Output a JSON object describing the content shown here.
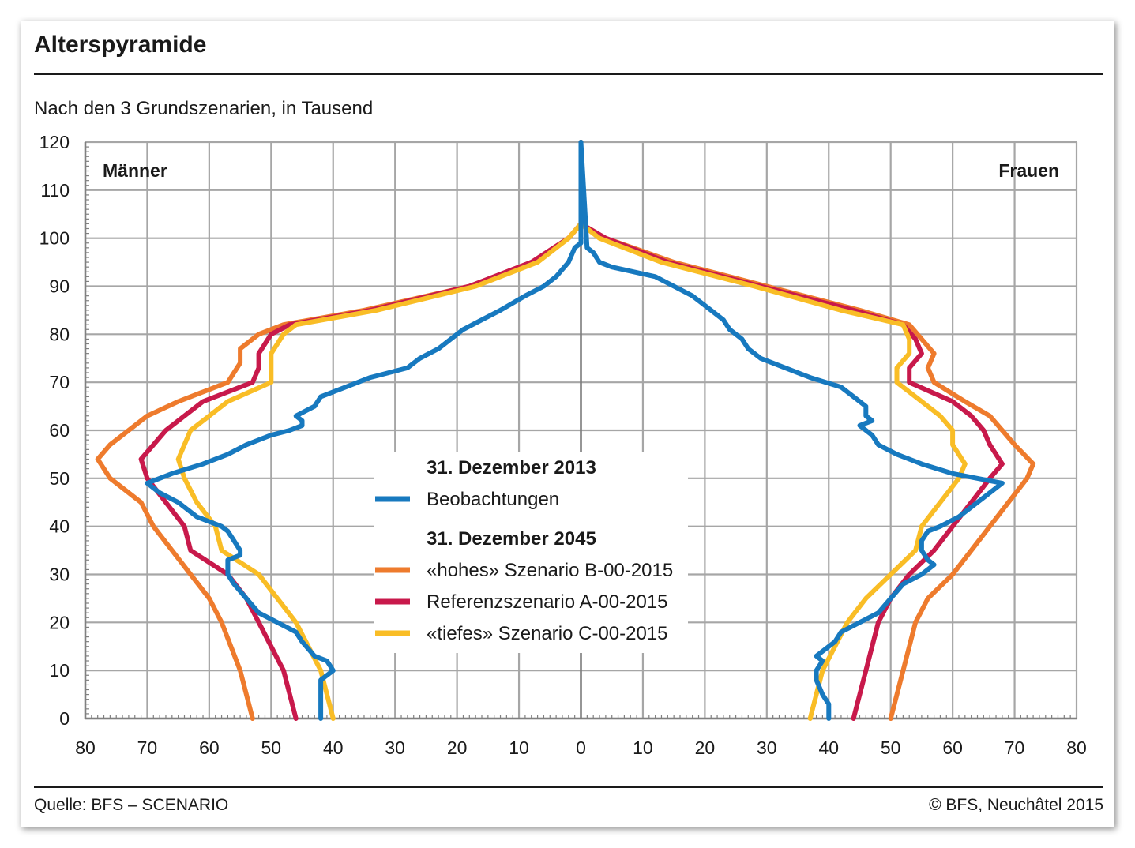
{
  "header": {
    "title": "Alterspyramide",
    "subtitle": "Nach den 3 Grundszenarien, in Tausend"
  },
  "footer": {
    "source": "Quelle: BFS – SCENARIO",
    "copyright": "© BFS, Neuchâtel 2015"
  },
  "chart_data": {
    "type": "line",
    "orientation": "population-pyramid",
    "side_labels": {
      "left": "Männer",
      "right": "Frauen"
    },
    "x_ticks": [
      "80",
      "70",
      "60",
      "50",
      "40",
      "30",
      "20",
      "10",
      "0",
      "10",
      "20",
      "30",
      "40",
      "50",
      "60",
      "70",
      "80"
    ],
    "xlim": [
      -80,
      80
    ],
    "ylim": [
      0,
      120
    ],
    "y_ticks": [
      0,
      10,
      20,
      30,
      40,
      50,
      60,
      70,
      80,
      90,
      100,
      110,
      120
    ],
    "grid": true,
    "legend": {
      "placement": "center",
      "groups": [
        {
          "heading": "31. Dezember 2013",
          "items": [
            {
              "label": "Beobachtungen",
              "series": "obs"
            }
          ]
        },
        {
          "heading": "31. Dezember 2045",
          "items": [
            {
              "label": "«hohes» Szenario B-00-2015",
              "series": "high"
            },
            {
              "label": "Referenzszenario A-00-2015",
              "series": "ref"
            },
            {
              "label": "«tiefes» Szenario C-00-2015",
              "series": "low"
            }
          ]
        }
      ]
    },
    "series": [
      {
        "key": "high",
        "color": "#ee7b2d",
        "men": [
          [
            0,
            53
          ],
          [
            10,
            55
          ],
          [
            20,
            58
          ],
          [
            25,
            60
          ],
          [
            30,
            63
          ],
          [
            35,
            66
          ],
          [
            40,
            69
          ],
          [
            45,
            71
          ],
          [
            50,
            76
          ],
          [
            54,
            78
          ],
          [
            57,
            76
          ],
          [
            60,
            73
          ],
          [
            63,
            70
          ],
          [
            66,
            65
          ],
          [
            70,
            57
          ],
          [
            74,
            55
          ],
          [
            77,
            55
          ],
          [
            80,
            52
          ],
          [
            82,
            48
          ],
          [
            85,
            35
          ],
          [
            90,
            18
          ],
          [
            95,
            8
          ],
          [
            100,
            2
          ],
          [
            103,
            0
          ],
          [
            120,
            0
          ]
        ],
        "women": [
          [
            0,
            50
          ],
          [
            10,
            52
          ],
          [
            20,
            54
          ],
          [
            25,
            56
          ],
          [
            30,
            60
          ],
          [
            35,
            63
          ],
          [
            40,
            66
          ],
          [
            45,
            69
          ],
          [
            50,
            72
          ],
          [
            53,
            73
          ],
          [
            57,
            70
          ],
          [
            60,
            68
          ],
          [
            63,
            66
          ],
          [
            66,
            62
          ],
          [
            70,
            57
          ],
          [
            73,
            56
          ],
          [
            76,
            57
          ],
          [
            79,
            55
          ],
          [
            82,
            53
          ],
          [
            85,
            45
          ],
          [
            90,
            30
          ],
          [
            95,
            15
          ],
          [
            100,
            4
          ],
          [
            103,
            0
          ],
          [
            120,
            0
          ]
        ]
      },
      {
        "key": "ref",
        "color": "#c8194b",
        "men": [
          [
            0,
            46
          ],
          [
            10,
            48
          ],
          [
            15,
            50
          ],
          [
            20,
            52
          ],
          [
            25,
            54
          ],
          [
            30,
            57
          ],
          [
            35,
            63
          ],
          [
            40,
            64
          ],
          [
            45,
            67
          ],
          [
            50,
            70
          ],
          [
            54,
            71
          ],
          [
            57,
            69
          ],
          [
            60,
            67
          ],
          [
            63,
            64
          ],
          [
            66,
            61
          ],
          [
            70,
            53
          ],
          [
            73,
            52
          ],
          [
            76,
            52
          ],
          [
            80,
            50
          ],
          [
            82,
            47
          ],
          [
            85,
            34
          ],
          [
            90,
            18
          ],
          [
            95,
            8
          ],
          [
            100,
            2
          ],
          [
            103,
            0
          ],
          [
            120,
            0
          ]
        ],
        "women": [
          [
            0,
            44
          ],
          [
            10,
            46
          ],
          [
            20,
            48
          ],
          [
            25,
            50
          ],
          [
            30,
            53
          ],
          [
            35,
            57
          ],
          [
            40,
            60
          ],
          [
            45,
            63
          ],
          [
            50,
            66
          ],
          [
            53,
            68
          ],
          [
            57,
            66
          ],
          [
            60,
            65
          ],
          [
            63,
            63
          ],
          [
            66,
            60
          ],
          [
            70,
            53
          ],
          [
            73,
            53
          ],
          [
            76,
            55
          ],
          [
            79,
            54
          ],
          [
            82,
            52
          ],
          [
            85,
            44
          ],
          [
            90,
            29
          ],
          [
            95,
            14
          ],
          [
            100,
            4
          ],
          [
            103,
            0
          ],
          [
            120,
            0
          ]
        ]
      },
      {
        "key": "low",
        "color": "#f9bd26",
        "men": [
          [
            0,
            40
          ],
          [
            10,
            42
          ],
          [
            15,
            44
          ],
          [
            20,
            46
          ],
          [
            25,
            49
          ],
          [
            30,
            52
          ],
          [
            35,
            58
          ],
          [
            40,
            59
          ],
          [
            45,
            62
          ],
          [
            50,
            64
          ],
          [
            54,
            65
          ],
          [
            57,
            64
          ],
          [
            60,
            63
          ],
          [
            63,
            60
          ],
          [
            66,
            57
          ],
          [
            70,
            50
          ],
          [
            73,
            50
          ],
          [
            76,
            50
          ],
          [
            80,
            48
          ],
          [
            82,
            46
          ],
          [
            85,
            33
          ],
          [
            90,
            17
          ],
          [
            95,
            7
          ],
          [
            100,
            2
          ],
          [
            103,
            0
          ],
          [
            120,
            0
          ]
        ],
        "women": [
          [
            0,
            37
          ],
          [
            10,
            39
          ],
          [
            20,
            43
          ],
          [
            25,
            46
          ],
          [
            30,
            50
          ],
          [
            35,
            54
          ],
          [
            40,
            55
          ],
          [
            45,
            58
          ],
          [
            50,
            61
          ],
          [
            53,
            62
          ],
          [
            57,
            60
          ],
          [
            60,
            60
          ],
          [
            63,
            58
          ],
          [
            66,
            55
          ],
          [
            70,
            51
          ],
          [
            73,
            51
          ],
          [
            76,
            53
          ],
          [
            79,
            53
          ],
          [
            82,
            52
          ],
          [
            85,
            42
          ],
          [
            90,
            28
          ],
          [
            95,
            13
          ],
          [
            100,
            3
          ],
          [
            103,
            0
          ],
          [
            120,
            0
          ]
        ]
      },
      {
        "key": "obs",
        "color": "#1779bf",
        "men": [
          [
            0,
            42
          ],
          [
            3,
            42
          ],
          [
            5,
            42
          ],
          [
            8,
            42
          ],
          [
            10,
            40
          ],
          [
            12,
            41
          ],
          [
            13,
            43
          ],
          [
            16,
            45
          ],
          [
            18,
            46
          ],
          [
            20,
            49
          ],
          [
            22,
            52
          ],
          [
            25,
            54
          ],
          [
            28,
            56
          ],
          [
            30,
            57
          ],
          [
            33,
            57
          ],
          [
            34,
            55
          ],
          [
            35,
            55
          ],
          [
            37,
            56
          ],
          [
            39,
            57
          ],
          [
            40,
            58
          ],
          [
            42,
            62
          ],
          [
            45,
            65
          ],
          [
            47,
            68
          ],
          [
            49,
            70
          ],
          [
            51,
            66
          ],
          [
            53,
            61
          ],
          [
            55,
            57
          ],
          [
            57,
            54
          ],
          [
            59,
            50
          ],
          [
            60,
            47
          ],
          [
            61,
            45
          ],
          [
            62,
            45
          ],
          [
            63,
            46
          ],
          [
            65,
            43
          ],
          [
            67,
            42
          ],
          [
            69,
            38
          ],
          [
            71,
            34
          ],
          [
            73,
            28
          ],
          [
            75,
            26
          ],
          [
            77,
            23
          ],
          [
            79,
            21
          ],
          [
            81,
            19
          ],
          [
            83,
            16
          ],
          [
            85,
            13
          ],
          [
            88,
            9
          ],
          [
            90,
            6
          ],
          [
            92,
            4
          ],
          [
            95,
            2
          ],
          [
            98,
            1
          ],
          [
            99,
            0
          ],
          [
            120,
            0
          ]
        ],
        "women": [
          [
            0,
            40
          ],
          [
            3,
            40
          ],
          [
            5,
            39
          ],
          [
            8,
            38
          ],
          [
            10,
            38
          ],
          [
            12,
            39
          ],
          [
            13,
            38
          ],
          [
            16,
            41
          ],
          [
            18,
            42
          ],
          [
            20,
            45
          ],
          [
            22,
            48
          ],
          [
            25,
            50
          ],
          [
            28,
            52
          ],
          [
            30,
            55
          ],
          [
            32,
            57
          ],
          [
            33,
            56
          ],
          [
            35,
            55
          ],
          [
            37,
            55
          ],
          [
            39,
            56
          ],
          [
            40,
            58
          ],
          [
            42,
            61
          ],
          [
            45,
            64
          ],
          [
            47,
            66
          ],
          [
            49,
            68
          ],
          [
            51,
            60
          ],
          [
            53,
            55
          ],
          [
            55,
            51
          ],
          [
            57,
            48
          ],
          [
            59,
            47
          ],
          [
            60,
            46
          ],
          [
            61,
            45
          ],
          [
            62,
            47
          ],
          [
            63,
            46
          ],
          [
            65,
            46
          ],
          [
            67,
            44
          ],
          [
            69,
            42
          ],
          [
            71,
            37
          ],
          [
            73,
            33
          ],
          [
            75,
            29
          ],
          [
            77,
            27
          ],
          [
            79,
            26
          ],
          [
            81,
            24
          ],
          [
            83,
            23
          ],
          [
            85,
            21
          ],
          [
            88,
            18
          ],
          [
            90,
            15
          ],
          [
            92,
            12
          ],
          [
            94,
            5
          ],
          [
            95,
            3
          ],
          [
            97,
            2
          ],
          [
            98,
            1
          ],
          [
            120,
            0
          ]
        ]
      }
    ]
  }
}
